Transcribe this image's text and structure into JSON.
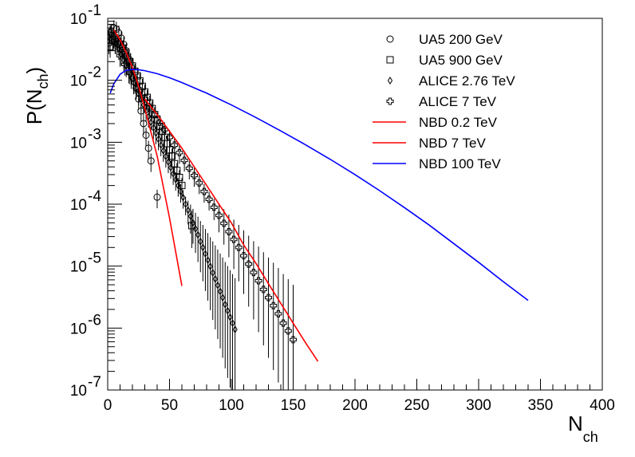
{
  "chart_data": {
    "type": "scatter",
    "title": "",
    "xlabel": {
      "main": "N",
      "sub": "ch"
    },
    "ylabel": {
      "main": "P(N",
      "sub": "ch",
      "close": ")"
    },
    "xlim": [
      0,
      400
    ],
    "ylim": [
      1e-07,
      0.1
    ],
    "y_scale": "log",
    "grid": false,
    "legend_position": "top-right",
    "x_ticks": [
      0,
      50,
      100,
      150,
      200,
      250,
      300,
      350,
      400
    ],
    "x_tick_labels": [
      "0",
      "50",
      "100",
      "150",
      "200",
      "250",
      "300",
      "350",
      "400"
    ],
    "y_ticks": [
      1e-07,
      1e-06,
      1e-05,
      0.0001,
      0.001,
      0.01,
      0.1
    ],
    "y_tick_labels": [
      {
        "base": "10",
        "exp": "-7"
      },
      {
        "base": "10",
        "exp": "-6"
      },
      {
        "base": "10",
        "exp": "-5"
      },
      {
        "base": "10",
        "exp": "-4"
      },
      {
        "base": "10",
        "exp": "-3"
      },
      {
        "base": "10",
        "exp": "-2"
      },
      {
        "base": "10",
        "exp": "-1"
      }
    ],
    "series": [
      {
        "name": "UA5 200 GeV",
        "kind": "points",
        "marker": "circle",
        "color": "#000000",
        "x": [
          1,
          3,
          5,
          7,
          9,
          11,
          13,
          15,
          17,
          19,
          21,
          23,
          25,
          27,
          29,
          31,
          33,
          35,
          40
        ],
        "y": [
          0.04,
          0.06,
          0.07,
          0.067,
          0.058,
          0.048,
          0.038,
          0.03,
          0.022,
          0.016,
          0.011,
          0.0075,
          0.005,
          0.0032,
          0.002,
          0.0013,
          0.0008,
          0.0005,
          0.00013
        ]
      },
      {
        "name": "UA5 900 GeV",
        "kind": "points",
        "marker": "square",
        "color": "#000000",
        "x": [
          2,
          4,
          6,
          8,
          10,
          12,
          14,
          16,
          18,
          20,
          22,
          24,
          26,
          28,
          30,
          32,
          34,
          36,
          38,
          40,
          42,
          44,
          46,
          48,
          50,
          52,
          54,
          56,
          58,
          60,
          68
        ],
        "y": [
          0.035,
          0.045,
          0.045,
          0.042,
          0.038,
          0.033,
          0.028,
          0.024,
          0.02,
          0.017,
          0.014,
          0.0118,
          0.0098,
          0.008,
          0.0065,
          0.0053,
          0.0043,
          0.0035,
          0.0028,
          0.0023,
          0.0018,
          0.0015,
          0.0012,
          0.00095,
          0.00075,
          0.0006,
          0.00045,
          0.00035,
          0.00027,
          0.0002,
          4.5e-05
        ]
      },
      {
        "name": "ALICE 2.76 TeV",
        "kind": "points",
        "marker": "diamond",
        "color": "#000000",
        "x": [
          1,
          3,
          5,
          7,
          9,
          11,
          13,
          15,
          17,
          19,
          21,
          23,
          25,
          27,
          29,
          31,
          33,
          35,
          37,
          39,
          41,
          43,
          45,
          47,
          49,
          51,
          53,
          55,
          57,
          59,
          61,
          63,
          65,
          67,
          69,
          71,
          73,
          75,
          77,
          79,
          81,
          83,
          85,
          87,
          89,
          91,
          93,
          95,
          97,
          99,
          101,
          103
        ],
        "y": [
          0.05,
          0.055,
          0.05,
          0.04,
          0.032,
          0.026,
          0.021,
          0.017,
          0.0135,
          0.011,
          0.009,
          0.0074,
          0.006,
          0.0049,
          0.004,
          0.0032,
          0.0026,
          0.0021,
          0.0017,
          0.0014,
          0.00112,
          0.0009,
          0.00073,
          0.00059,
          0.00048,
          0.00039,
          0.00031,
          0.00025,
          0.0002,
          0.00016,
          0.000128,
          0.0001,
          8e-05,
          6.4e-05,
          5e-05,
          4e-05,
          3.2e-05,
          2.5e-05,
          2e-05,
          1.58e-05,
          1.25e-05,
          9.9e-06,
          7.8e-06,
          6.2e-06,
          4.9e-06,
          3.9e-06,
          3.1e-06,
          2.4e-06,
          1.9e-06,
          1.5e-06,
          1.2e-06,
          9.5e-07
        ]
      },
      {
        "name": "ALICE 7 TeV",
        "kind": "points",
        "marker": "cross",
        "color": "#000000",
        "x": [
          2,
          6,
          10,
          14,
          18,
          22,
          26,
          30,
          34,
          38,
          42,
          46,
          50,
          54,
          58,
          62,
          66,
          70,
          74,
          78,
          82,
          86,
          90,
          94,
          98,
          102,
          106,
          110,
          114,
          118,
          122,
          126,
          130,
          134,
          138,
          142,
          146,
          150
        ],
        "y": [
          0.06,
          0.04,
          0.025,
          0.018,
          0.013,
          0.0092,
          0.0068,
          0.005,
          0.0037,
          0.0028,
          0.0021,
          0.0016,
          0.0012,
          0.0009,
          0.00068,
          0.00051,
          0.00038,
          0.00029,
          0.00022,
          0.00016,
          0.00012,
          8.9e-05,
          6.6e-05,
          4.9e-05,
          3.6e-05,
          2.7e-05,
          2e-05,
          1.47e-05,
          1.08e-05,
          7.9e-06,
          5.8e-06,
          4.2e-06,
          3.1e-06,
          2.3e-06,
          1.7e-06,
          1.2e-06,
          9e-07,
          6.5e-07
        ]
      },
      {
        "name": "NBD 0.2 TeV",
        "kind": "line",
        "color": "#ff0000",
        "x": [
          5,
          10,
          15,
          20,
          25,
          30,
          40,
          50,
          60
        ],
        "y": [
          0.065,
          0.045,
          0.028,
          0.016,
          0.008,
          0.0035,
          0.0006,
          6e-05,
          4.8e-06
        ]
      },
      {
        "name": "NBD 7 TeV",
        "kind": "line",
        "color": "#ff0000",
        "x": [
          30,
          40,
          50,
          60,
          70,
          80,
          90,
          100,
          110,
          120,
          130,
          140,
          150,
          160,
          170
        ],
        "y": [
          0.005,
          0.0028,
          0.0015,
          0.0008,
          0.0004,
          0.0002,
          0.0001,
          5e-05,
          2.2e-05,
          1.1e-05,
          5.2e-06,
          2.5e-06,
          1.2e-06,
          5.8e-07,
          2.9e-07
        ]
      },
      {
        "name": "NBD 100 TeV",
        "kind": "line",
        "color": "#0000ff",
        "x": [
          2,
          5,
          10,
          15,
          20,
          25,
          30,
          40,
          50,
          60,
          80,
          100,
          120,
          140,
          160,
          180,
          200,
          220,
          240,
          260,
          280,
          300,
          320,
          340
        ],
        "y": [
          0.0062,
          0.0088,
          0.0125,
          0.0145,
          0.015,
          0.0148,
          0.0143,
          0.0128,
          0.011,
          0.0092,
          0.0062,
          0.004,
          0.0025,
          0.00152,
          0.00091,
          0.00053,
          0.0003,
          0.000165,
          8.8e-05,
          4.6e-05,
          2.3e-05,
          1.15e-05,
          5.6e-06,
          2.8e-06
        ]
      }
    ]
  }
}
